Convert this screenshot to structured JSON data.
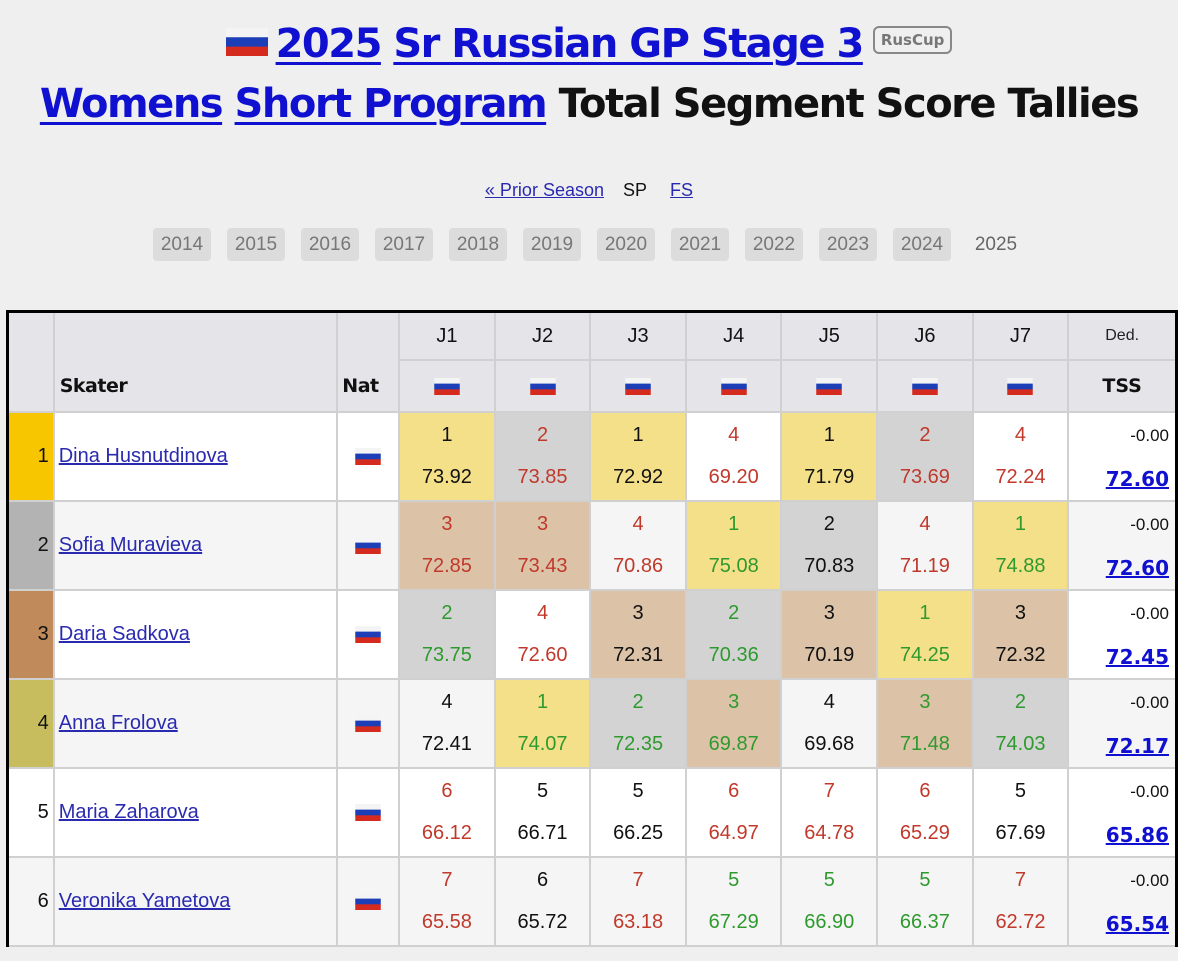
{
  "header": {
    "flag_icon": "russia-flag",
    "event_year": "2025",
    "event_name": "Sr Russian GP Stage 3",
    "badge": "RusCup",
    "category": "Womens",
    "segment": "Short Program",
    "title_suffix": "Total Segment Score Tallies"
  },
  "season_nav": {
    "prior": "« Prior Season",
    "current": "SP",
    "other": "FS"
  },
  "years": [
    "2014",
    "2015",
    "2016",
    "2017",
    "2018",
    "2019",
    "2020",
    "2021",
    "2022",
    "2023",
    "2024",
    "2025"
  ],
  "active_year": "2025",
  "table": {
    "headers": {
      "skater": "Skater",
      "nat": "Nat",
      "judges": [
        "J1",
        "J2",
        "J3",
        "J4",
        "J5",
        "J6",
        "J7"
      ],
      "ded": "Ded.",
      "tss": "TSS"
    },
    "colors": {
      "rank1": "#f7c600",
      "rank2": "#b3b3b3",
      "rank3": "#c08a5a",
      "rank4": "#c8bd5e",
      "red": "#c0392b",
      "green": "#2e9a2e",
      "link": "#1010d0"
    },
    "rows": [
      {
        "rank": "1",
        "name": "Dina Husnutdinova",
        "nat": "RUS",
        "ded": "-0.00",
        "tss": "72.60",
        "judges": [
          {
            "place": "1",
            "score": "73.92",
            "color": "black",
            "bg": "gold"
          },
          {
            "place": "2",
            "score": "73.85",
            "color": "red",
            "bg": "silver"
          },
          {
            "place": "1",
            "score": "72.92",
            "color": "black",
            "bg": "gold"
          },
          {
            "place": "4",
            "score": "69.20",
            "color": "red",
            "bg": "white"
          },
          {
            "place": "1",
            "score": "71.79",
            "color": "black",
            "bg": "gold"
          },
          {
            "place": "2",
            "score": "73.69",
            "color": "red",
            "bg": "silver"
          },
          {
            "place": "4",
            "score": "72.24",
            "color": "red",
            "bg": "white"
          }
        ]
      },
      {
        "rank": "2",
        "name": "Sofia Muravieva",
        "nat": "RUS",
        "ded": "-0.00",
        "tss": "72.60",
        "judges": [
          {
            "place": "3",
            "score": "72.85",
            "color": "red",
            "bg": "bronze"
          },
          {
            "place": "3",
            "score": "73.43",
            "color": "red",
            "bg": "bronze"
          },
          {
            "place": "4",
            "score": "70.86",
            "color": "red",
            "bg": "row"
          },
          {
            "place": "1",
            "score": "75.08",
            "color": "green",
            "bg": "gold"
          },
          {
            "place": "2",
            "score": "70.83",
            "color": "black",
            "bg": "silver"
          },
          {
            "place": "4",
            "score": "71.19",
            "color": "red",
            "bg": "row"
          },
          {
            "place": "1",
            "score": "74.88",
            "color": "green",
            "bg": "gold"
          }
        ]
      },
      {
        "rank": "3",
        "name": "Daria Sadkova",
        "nat": "RUS",
        "ded": "-0.00",
        "tss": "72.45",
        "judges": [
          {
            "place": "2",
            "score": "73.75",
            "color": "green",
            "bg": "silver"
          },
          {
            "place": "4",
            "score": "72.60",
            "color": "red",
            "bg": "white"
          },
          {
            "place": "3",
            "score": "72.31",
            "color": "black",
            "bg": "bronze"
          },
          {
            "place": "2",
            "score": "70.36",
            "color": "green",
            "bg": "silver"
          },
          {
            "place": "3",
            "score": "70.19",
            "color": "black",
            "bg": "bronze"
          },
          {
            "place": "1",
            "score": "74.25",
            "color": "green",
            "bg": "gold"
          },
          {
            "place": "3",
            "score": "72.32",
            "color": "black",
            "bg": "bronze"
          }
        ]
      },
      {
        "rank": "4",
        "name": "Anna Frolova",
        "nat": "RUS",
        "ded": "-0.00",
        "tss": "72.17",
        "judges": [
          {
            "place": "4",
            "score": "72.41",
            "color": "black",
            "bg": "row"
          },
          {
            "place": "1",
            "score": "74.07",
            "color": "green",
            "bg": "gold"
          },
          {
            "place": "2",
            "score": "72.35",
            "color": "green",
            "bg": "silver"
          },
          {
            "place": "3",
            "score": "69.87",
            "color": "green",
            "bg": "bronze"
          },
          {
            "place": "4",
            "score": "69.68",
            "color": "black",
            "bg": "row"
          },
          {
            "place": "3",
            "score": "71.48",
            "color": "green",
            "bg": "bronze"
          },
          {
            "place": "2",
            "score": "74.03",
            "color": "green",
            "bg": "silver"
          }
        ]
      },
      {
        "rank": "5",
        "name": "Maria Zaharova",
        "nat": "RUS",
        "ded": "-0.00",
        "tss": "65.86",
        "judges": [
          {
            "place": "6",
            "score": "66.12",
            "color": "red",
            "bg": "row"
          },
          {
            "place": "5",
            "score": "66.71",
            "color": "black",
            "bg": "row"
          },
          {
            "place": "5",
            "score": "66.25",
            "color": "black",
            "bg": "row"
          },
          {
            "place": "6",
            "score": "64.97",
            "color": "red",
            "bg": "row"
          },
          {
            "place": "7",
            "score": "64.78",
            "color": "red",
            "bg": "row"
          },
          {
            "place": "6",
            "score": "65.29",
            "color": "red",
            "bg": "row"
          },
          {
            "place": "5",
            "score": "67.69",
            "color": "black",
            "bg": "row"
          }
        ]
      },
      {
        "rank": "6",
        "name": "Veronika Yametova",
        "nat": "RUS",
        "ded": "-0.00",
        "tss": "65.54",
        "judges": [
          {
            "place": "7",
            "score": "65.58",
            "color": "red",
            "bg": "row"
          },
          {
            "place": "6",
            "score": "65.72",
            "color": "black",
            "bg": "row"
          },
          {
            "place": "7",
            "score": "63.18",
            "color": "red",
            "bg": "row"
          },
          {
            "place": "5",
            "score": "67.29",
            "color": "green",
            "bg": "row"
          },
          {
            "place": "5",
            "score": "66.90",
            "color": "green",
            "bg": "row"
          },
          {
            "place": "5",
            "score": "66.37",
            "color": "green",
            "bg": "row"
          },
          {
            "place": "7",
            "score": "62.72",
            "color": "red",
            "bg": "row"
          }
        ]
      }
    ]
  }
}
